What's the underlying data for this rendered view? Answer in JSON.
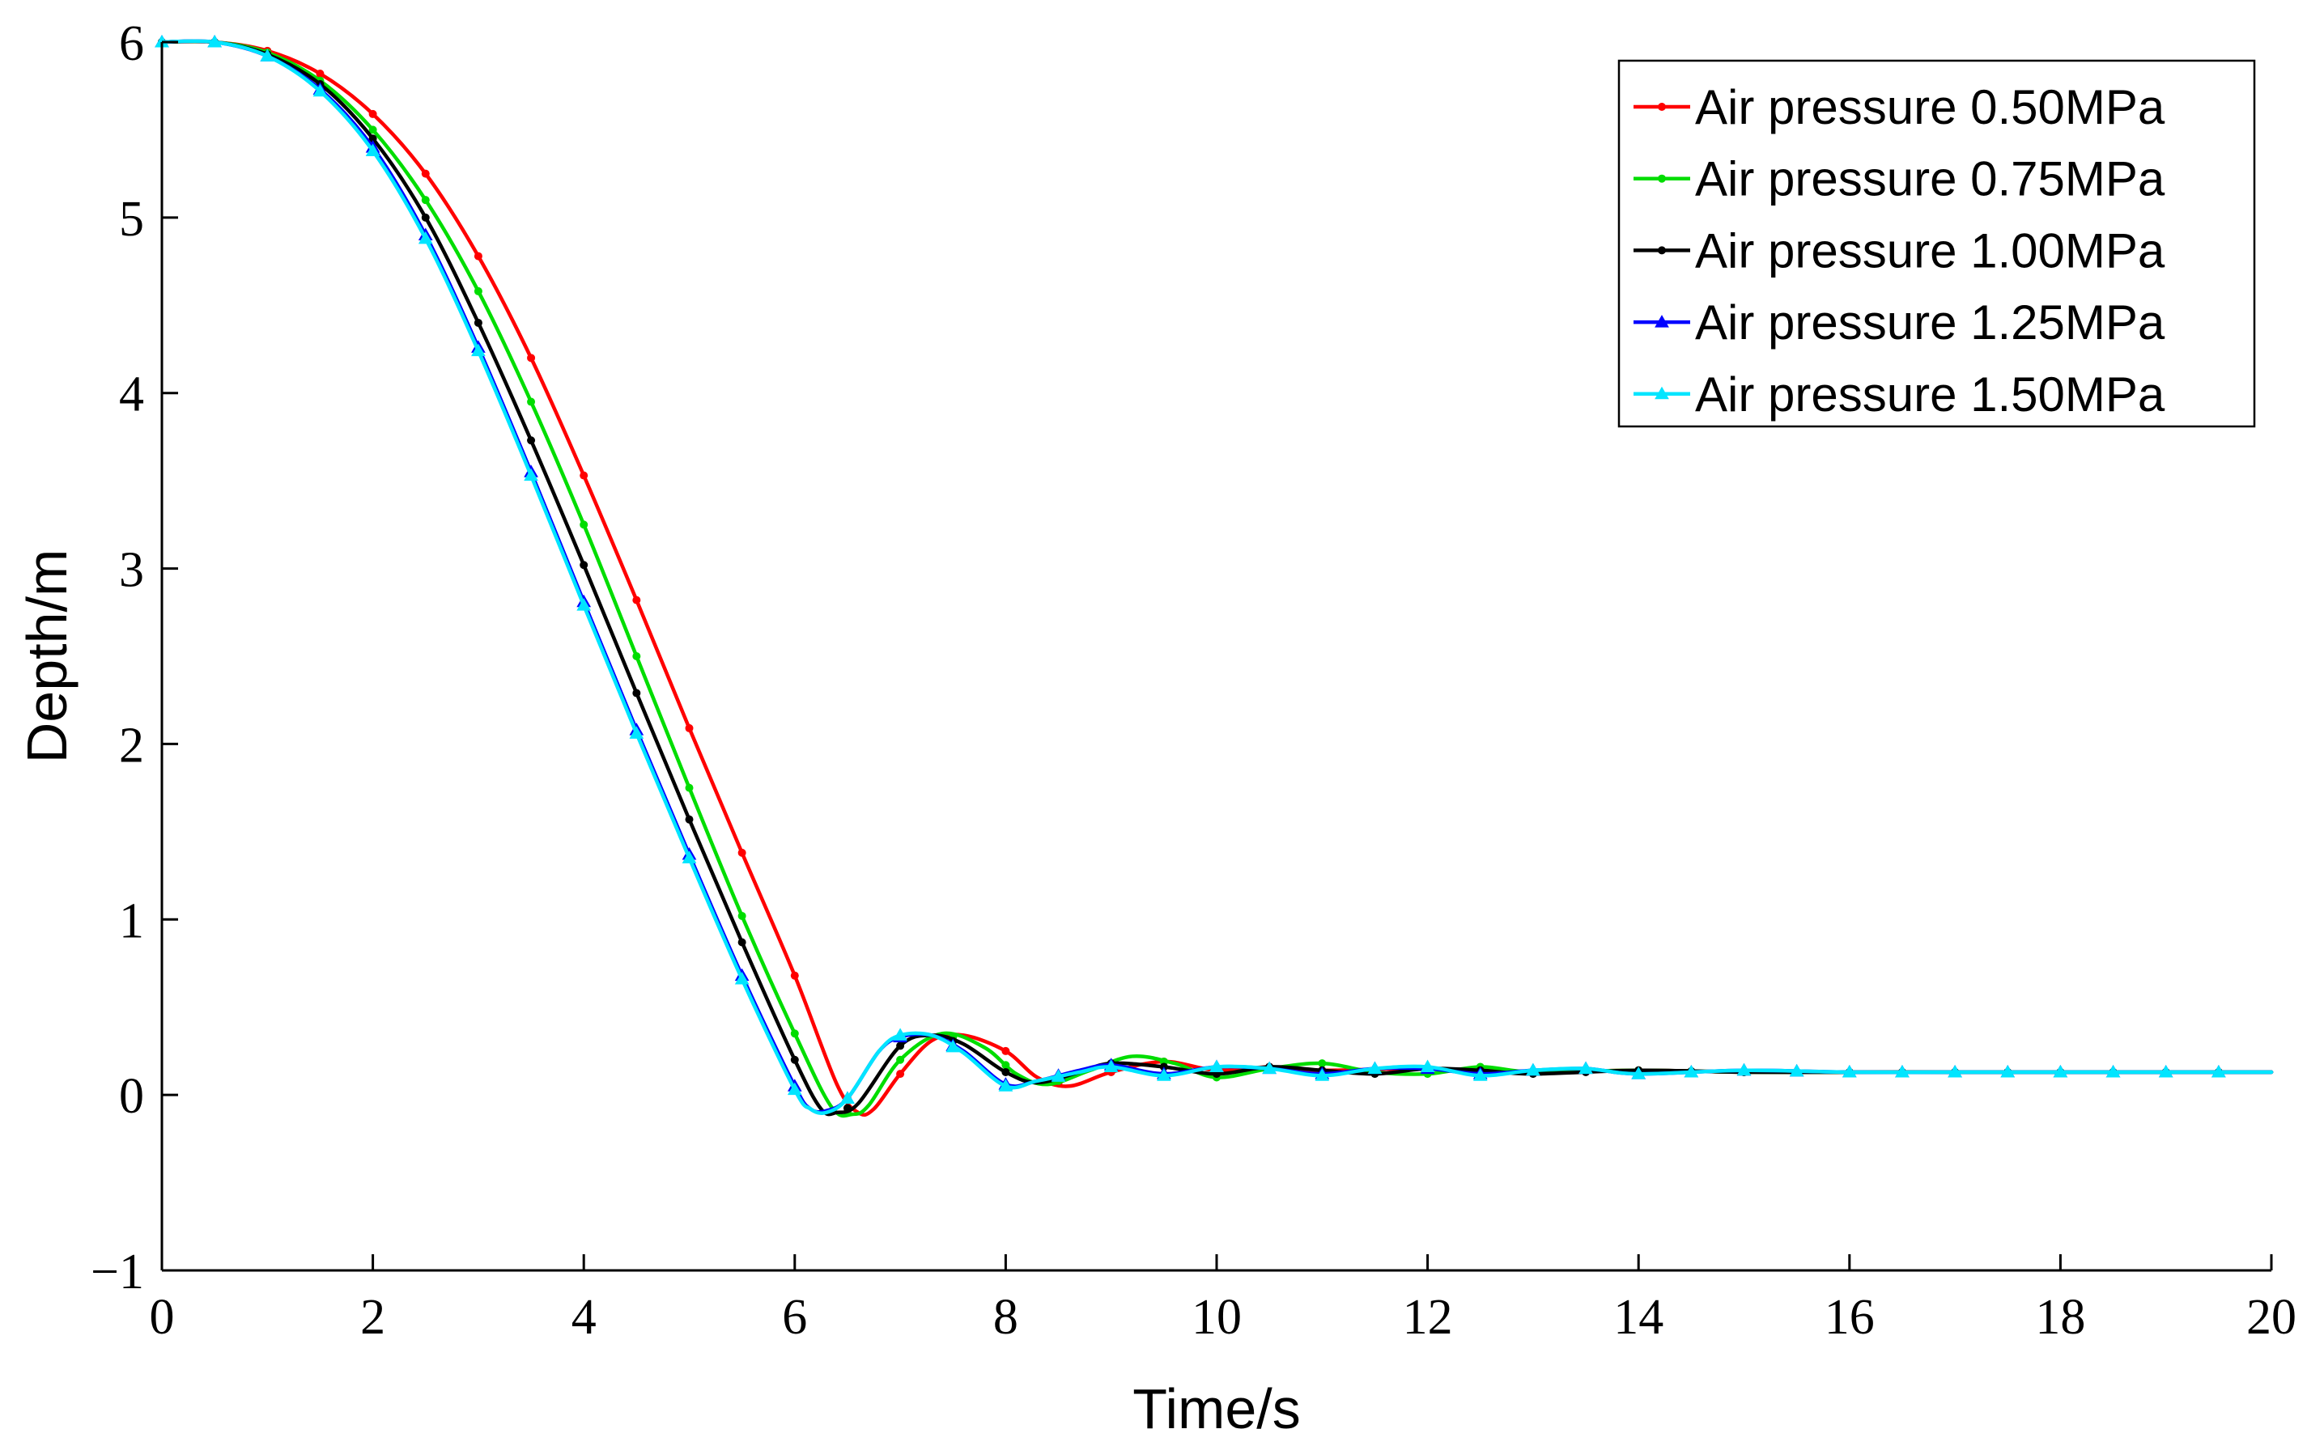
{
  "chart_data": {
    "type": "line",
    "title": "",
    "xlabel": "Time/s",
    "ylabel": "Depth/m",
    "xlim": [
      0,
      20
    ],
    "ylim": [
      -1,
      6
    ],
    "xticks": [
      0,
      2,
      4,
      6,
      8,
      10,
      12,
      14,
      16,
      18,
      20
    ],
    "yticks": [
      -1,
      0,
      1,
      2,
      3,
      4,
      5,
      6
    ],
    "xtick_labels": [
      "0",
      "2",
      "4",
      "6",
      "8",
      "10",
      "12",
      "14",
      "16",
      "18",
      "20"
    ],
    "ytick_labels": [
      "−1",
      "0",
      "1",
      "2",
      "3",
      "4",
      "5",
      "6"
    ],
    "grid": false,
    "legend_position": "top-right",
    "series": [
      {
        "name": "Air pressure 0.50MPa",
        "color": "#ff0000",
        "marker": "dot",
        "points": [
          [
            0,
            6.0
          ],
          [
            0.5,
            6.0
          ],
          [
            1.0,
            5.95
          ],
          [
            1.5,
            5.82
          ],
          [
            2.0,
            5.59
          ],
          [
            2.5,
            5.25
          ],
          [
            3.0,
            4.78
          ],
          [
            3.5,
            4.2
          ],
          [
            4.0,
            3.53
          ],
          [
            4.5,
            2.82
          ],
          [
            5.0,
            2.09
          ],
          [
            5.5,
            1.38
          ],
          [
            6.0,
            0.68
          ],
          [
            6.4,
            0.06
          ],
          [
            6.6,
            -0.1
          ],
          [
            6.75,
            -0.08
          ],
          [
            7.0,
            0.12
          ],
          [
            7.3,
            0.31
          ],
          [
            7.6,
            0.34
          ],
          [
            8.0,
            0.25
          ],
          [
            8.3,
            0.1
          ],
          [
            8.6,
            0.05
          ],
          [
            9.0,
            0.13
          ],
          [
            9.5,
            0.19
          ],
          [
            10.0,
            0.14
          ],
          [
            10.5,
            0.16
          ],
          [
            11.0,
            0.14
          ],
          [
            12.0,
            0.15
          ],
          [
            13.0,
            0.13
          ],
          [
            14.0,
            0.14
          ],
          [
            15.0,
            0.13
          ],
          [
            16.0,
            0.13
          ],
          [
            17.0,
            0.13
          ],
          [
            18.0,
            0.13
          ],
          [
            19.0,
            0.13
          ],
          [
            20.0,
            0.13
          ]
        ]
      },
      {
        "name": "Air pressure 0.75MPa",
        "color": "#00dd00",
        "marker": "dot",
        "points": [
          [
            0,
            6.0
          ],
          [
            0.5,
            6.0
          ],
          [
            1.0,
            5.94
          ],
          [
            1.5,
            5.78
          ],
          [
            2.0,
            5.5
          ],
          [
            2.5,
            5.1
          ],
          [
            3.0,
            4.58
          ],
          [
            3.5,
            3.95
          ],
          [
            4.0,
            3.25
          ],
          [
            4.5,
            2.5
          ],
          [
            5.0,
            1.75
          ],
          [
            5.5,
            1.02
          ],
          [
            6.0,
            0.35
          ],
          [
            6.35,
            -0.07
          ],
          [
            6.55,
            -0.11
          ],
          [
            6.7,
            -0.06
          ],
          [
            7.0,
            0.2
          ],
          [
            7.4,
            0.35
          ],
          [
            7.8,
            0.27
          ],
          [
            8.1,
            0.12
          ],
          [
            8.4,
            0.06
          ],
          [
            8.8,
            0.14
          ],
          [
            9.2,
            0.22
          ],
          [
            9.6,
            0.18
          ],
          [
            10.0,
            0.1
          ],
          [
            10.5,
            0.15
          ],
          [
            11.0,
            0.18
          ],
          [
            11.5,
            0.13
          ],
          [
            12.0,
            0.12
          ],
          [
            12.5,
            0.16
          ],
          [
            13.0,
            0.13
          ],
          [
            14.0,
            0.14
          ],
          [
            15.0,
            0.13
          ],
          [
            16.0,
            0.13
          ],
          [
            17.0,
            0.13
          ],
          [
            18.0,
            0.13
          ],
          [
            19.0,
            0.13
          ],
          [
            20.0,
            0.13
          ]
        ]
      },
      {
        "name": "Air pressure 1.00MPa",
        "color": "#000000",
        "marker": "dot",
        "points": [
          [
            0,
            6.0
          ],
          [
            0.5,
            6.0
          ],
          [
            1.0,
            5.93
          ],
          [
            1.5,
            5.76
          ],
          [
            2.0,
            5.45
          ],
          [
            2.5,
            5.0
          ],
          [
            3.0,
            4.4
          ],
          [
            3.5,
            3.73
          ],
          [
            4.0,
            3.02
          ],
          [
            4.5,
            2.29
          ],
          [
            5.0,
            1.57
          ],
          [
            5.5,
            0.87
          ],
          [
            6.0,
            0.2
          ],
          [
            6.25,
            -0.08
          ],
          [
            6.4,
            -0.1
          ],
          [
            6.6,
            -0.05
          ],
          [
            7.0,
            0.28
          ],
          [
            7.3,
            0.34
          ],
          [
            7.6,
            0.29
          ],
          [
            8.0,
            0.13
          ],
          [
            8.3,
            0.07
          ],
          [
            8.7,
            0.13
          ],
          [
            9.0,
            0.18
          ],
          [
            9.5,
            0.16
          ],
          [
            10.0,
            0.12
          ],
          [
            10.5,
            0.16
          ],
          [
            11.0,
            0.14
          ],
          [
            11.5,
            0.12
          ],
          [
            12.0,
            0.15
          ],
          [
            12.5,
            0.14
          ],
          [
            13.0,
            0.12
          ],
          [
            14.0,
            0.14
          ],
          [
            15.0,
            0.13
          ],
          [
            16.0,
            0.13
          ],
          [
            17.0,
            0.13
          ],
          [
            18.0,
            0.13
          ],
          [
            19.0,
            0.13
          ],
          [
            20.0,
            0.13
          ]
        ]
      },
      {
        "name": "Air pressure 1.25MPa",
        "color": "#0000ff",
        "marker": "triangle",
        "points": [
          [
            0,
            6.0
          ],
          [
            0.5,
            6.0
          ],
          [
            1.0,
            5.92
          ],
          [
            1.5,
            5.73
          ],
          [
            2.0,
            5.4
          ],
          [
            2.5,
            4.9
          ],
          [
            3.0,
            4.26
          ],
          [
            3.5,
            3.55
          ],
          [
            4.0,
            2.81
          ],
          [
            4.5,
            2.08
          ],
          [
            5.0,
            1.37
          ],
          [
            5.5,
            0.68
          ],
          [
            6.0,
            0.05
          ],
          [
            6.15,
            -0.08
          ],
          [
            6.3,
            -0.09
          ],
          [
            6.5,
            -0.02
          ],
          [
            6.8,
            0.25
          ],
          [
            7.0,
            0.33
          ],
          [
            7.3,
            0.34
          ],
          [
            7.6,
            0.25
          ],
          [
            8.0,
            0.06
          ],
          [
            8.3,
            0.08
          ],
          [
            8.7,
            0.14
          ],
          [
            9.0,
            0.17
          ],
          [
            9.5,
            0.12
          ],
          [
            10.0,
            0.16
          ],
          [
            10.5,
            0.15
          ],
          [
            11.0,
            0.12
          ],
          [
            11.5,
            0.15
          ],
          [
            12.0,
            0.15
          ],
          [
            12.5,
            0.12
          ],
          [
            13.0,
            0.14
          ],
          [
            13.5,
            0.15
          ],
          [
            14.0,
            0.12
          ],
          [
            15.0,
            0.14
          ],
          [
            16.0,
            0.13
          ],
          [
            17.0,
            0.13
          ],
          [
            18.0,
            0.13
          ],
          [
            19.0,
            0.13
          ],
          [
            20.0,
            0.13
          ]
        ]
      },
      {
        "name": "Air pressure 1.50MPa",
        "color": "#00e5ff",
        "marker": "triangle",
        "points": [
          [
            0,
            6.0
          ],
          [
            0.5,
            6.0
          ],
          [
            1.0,
            5.92
          ],
          [
            1.5,
            5.72
          ],
          [
            2.0,
            5.38
          ],
          [
            2.5,
            4.88
          ],
          [
            3.0,
            4.24
          ],
          [
            3.5,
            3.53
          ],
          [
            4.0,
            2.79
          ],
          [
            4.5,
            2.06
          ],
          [
            5.0,
            1.35
          ],
          [
            5.5,
            0.66
          ],
          [
            6.0,
            0.03
          ],
          [
            6.15,
            -0.08
          ],
          [
            6.3,
            -0.1
          ],
          [
            6.5,
            -0.02
          ],
          [
            6.8,
            0.25
          ],
          [
            7.0,
            0.34
          ],
          [
            7.3,
            0.34
          ],
          [
            7.6,
            0.24
          ],
          [
            8.0,
            0.05
          ],
          [
            8.3,
            0.08
          ],
          [
            8.7,
            0.13
          ],
          [
            9.0,
            0.16
          ],
          [
            9.5,
            0.11
          ],
          [
            10.0,
            0.16
          ],
          [
            10.5,
            0.15
          ],
          [
            11.0,
            0.11
          ],
          [
            11.5,
            0.15
          ],
          [
            12.0,
            0.16
          ],
          [
            12.5,
            0.11
          ],
          [
            13.0,
            0.14
          ],
          [
            13.5,
            0.15
          ],
          [
            14.0,
            0.12
          ],
          [
            15.0,
            0.14
          ],
          [
            16.0,
            0.13
          ],
          [
            17.0,
            0.13
          ],
          [
            18.0,
            0.13
          ],
          [
            19.0,
            0.13
          ],
          [
            20.0,
            0.13
          ]
        ]
      }
    ]
  }
}
